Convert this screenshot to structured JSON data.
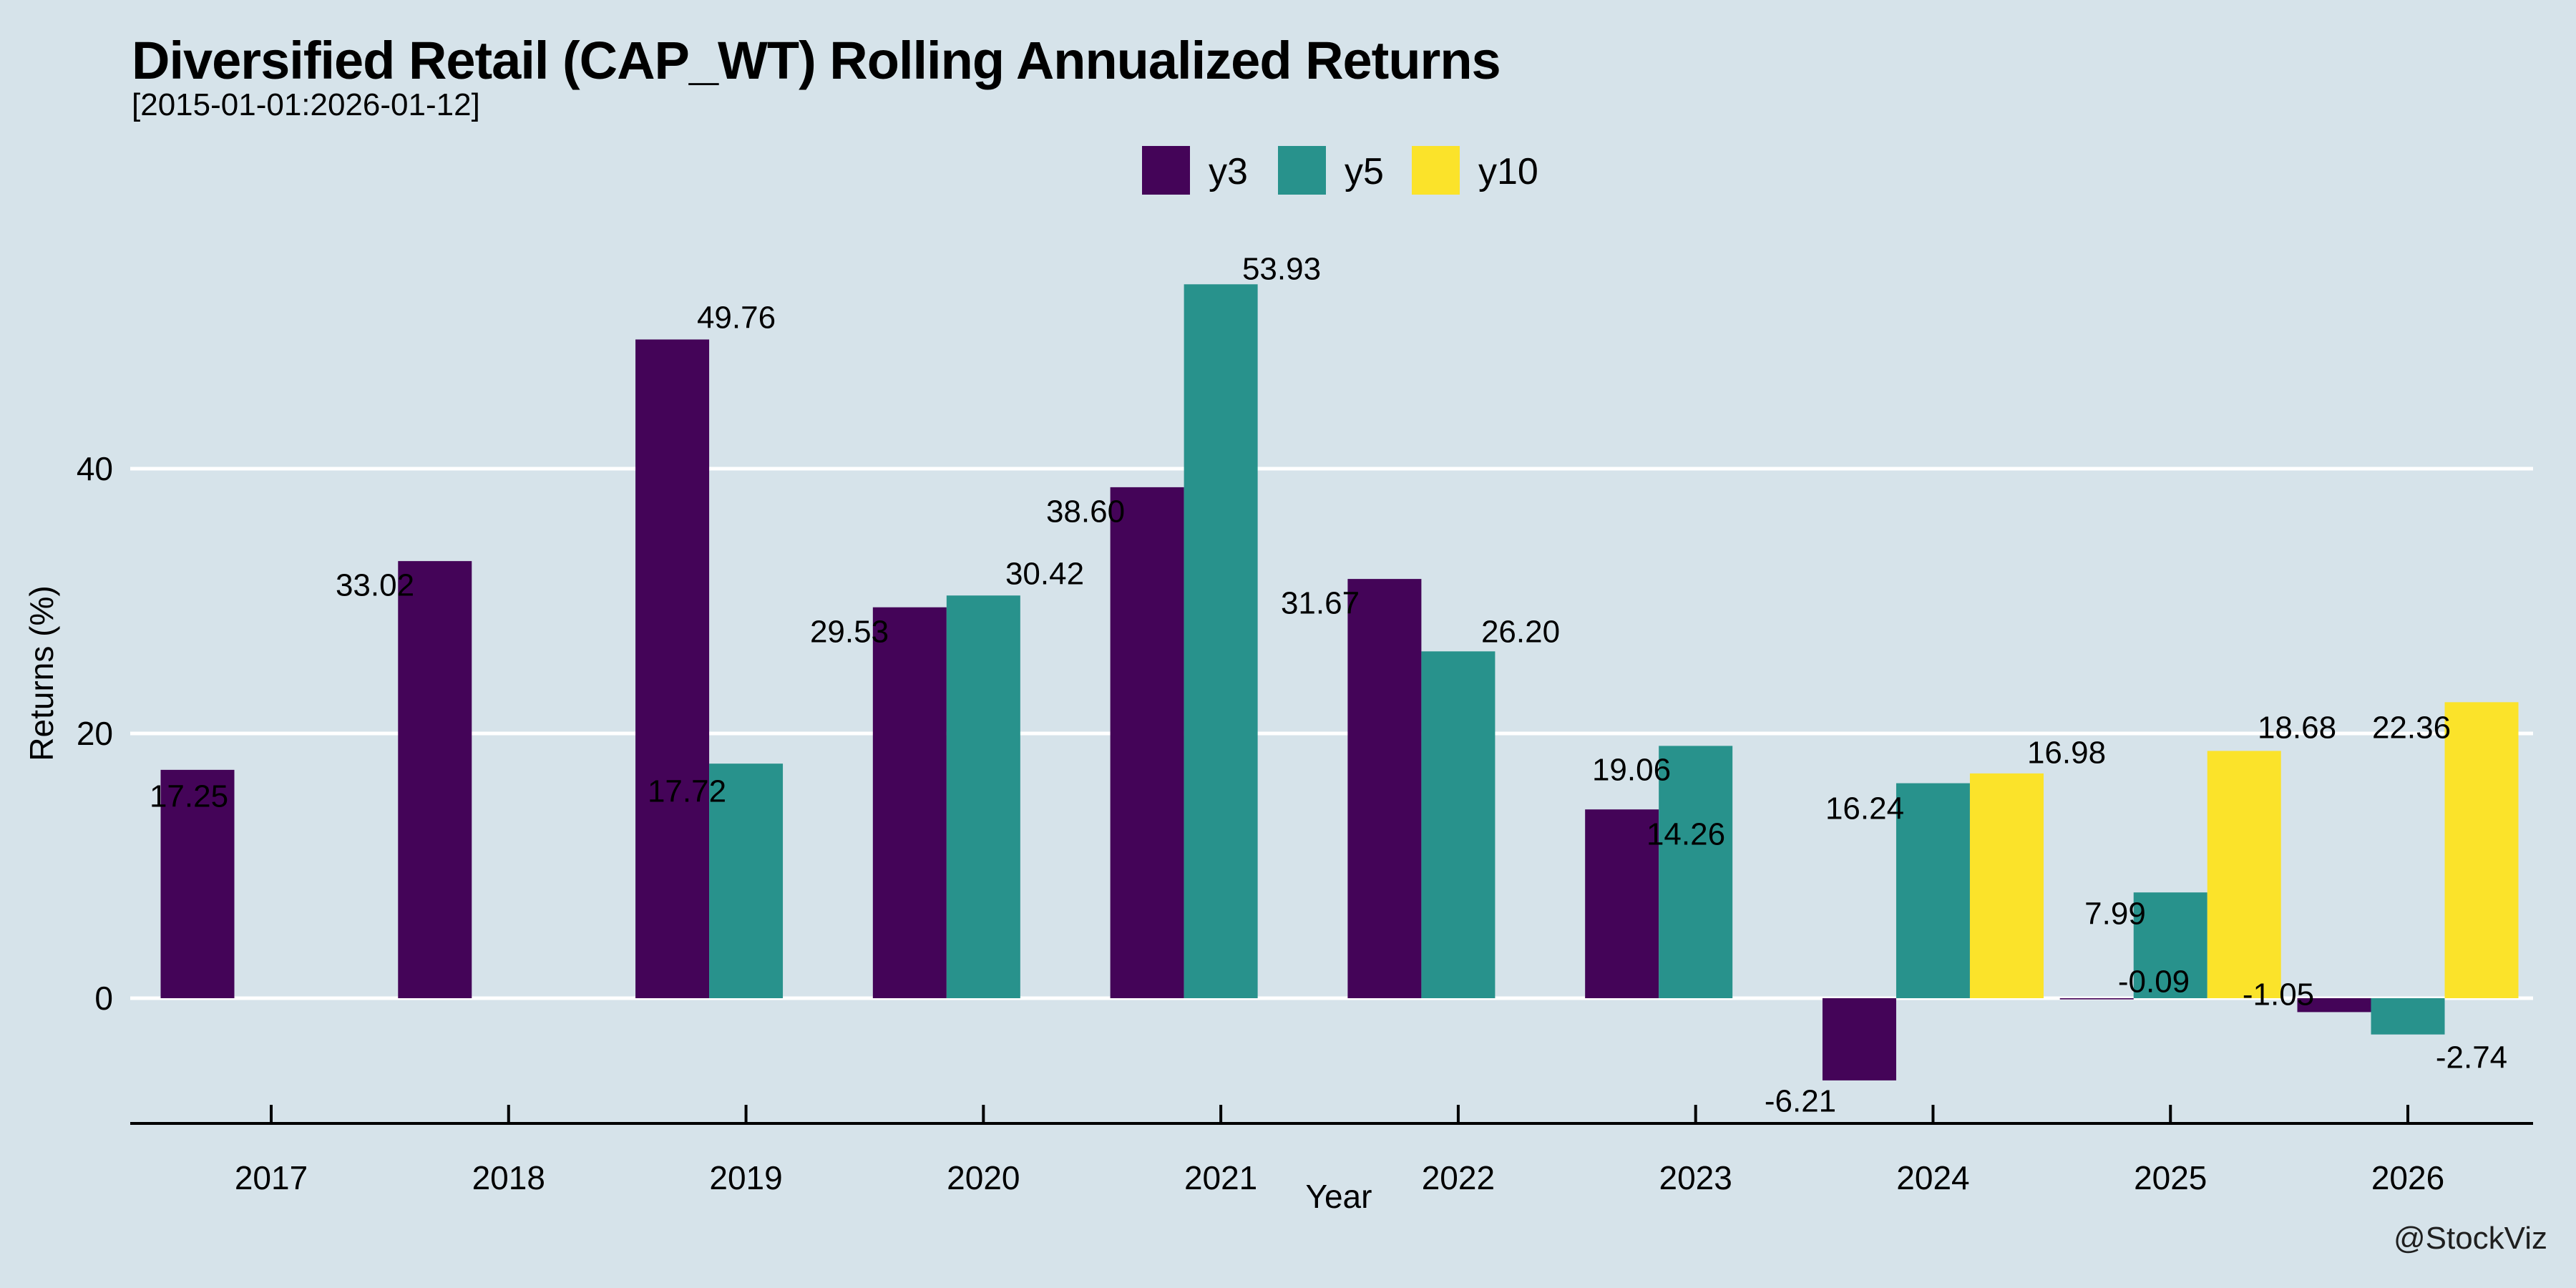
{
  "title": "Diversified Retail (CAP_WT) Rolling Annualized Returns",
  "subtitle": "[2015-01-01:2026-01-12]",
  "watermark": "@StockViz",
  "colors": {
    "background": "#d6e3ea",
    "grid": "#ffffff",
    "axis": "#000000",
    "text": "#000000",
    "y3": "#440458",
    "y5": "#28928c",
    "y10": "#fbe32a"
  },
  "legend": [
    {
      "label": "y3",
      "color_key": "y3"
    },
    {
      "label": "y5",
      "color_key": "y5"
    },
    {
      "label": "y10",
      "color_key": "y10"
    }
  ],
  "chart_data": {
    "type": "bar",
    "title": "Diversified Retail (CAP_WT) Rolling Annualized Returns",
    "subtitle": "[2015-01-01:2026-01-12]",
    "xlabel": "Year",
    "ylabel": "Returns (%)",
    "categories": [
      "2017",
      "2018",
      "2019",
      "2020",
      "2021",
      "2022",
      "2023",
      "2024",
      "2025",
      "2026"
    ],
    "yticks": [
      0,
      20,
      40
    ],
    "ylim": [
      -12,
      60
    ],
    "grid": true,
    "legend_position": "top-center",
    "series": [
      {
        "name": "y3",
        "values": [
          17.25,
          33.02,
          49.76,
          29.53,
          38.6,
          31.67,
          14.26,
          -6.21,
          -0.09,
          -1.05
        ]
      },
      {
        "name": "y5",
        "values": [
          null,
          null,
          17.72,
          30.42,
          53.93,
          26.2,
          19.06,
          16.24,
          7.99,
          -2.74
        ]
      },
      {
        "name": "y10",
        "values": [
          null,
          null,
          null,
          null,
          null,
          null,
          null,
          16.98,
          18.68,
          22.36
        ]
      }
    ]
  }
}
